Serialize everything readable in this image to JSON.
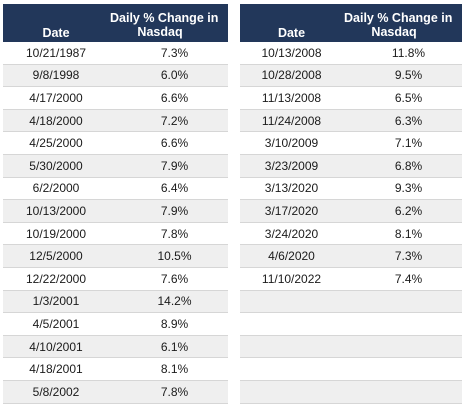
{
  "left_table": {
    "header": {
      "date": "Date",
      "change_line1": "Daily % Change in",
      "change_line2": "Nasdaq"
    },
    "rows": [
      {
        "date": "10/21/1987",
        "change": "7.3%"
      },
      {
        "date": "9/8/1998",
        "change": "6.0%"
      },
      {
        "date": "4/17/2000",
        "change": "6.6%"
      },
      {
        "date": "4/18/2000",
        "change": "7.2%"
      },
      {
        "date": "4/25/2000",
        "change": "6.6%"
      },
      {
        "date": "5/30/2000",
        "change": "7.9%"
      },
      {
        "date": "6/2/2000",
        "change": "6.4%"
      },
      {
        "date": "10/13/2000",
        "change": "7.9%"
      },
      {
        "date": "10/19/2000",
        "change": "7.8%"
      },
      {
        "date": "12/5/2000",
        "change": "10.5%"
      },
      {
        "date": "12/22/2000",
        "change": "7.6%"
      },
      {
        "date": "1/3/2001",
        "change": "14.2%"
      },
      {
        "date": "4/5/2001",
        "change": "8.9%"
      },
      {
        "date": "4/10/2001",
        "change": "6.1%"
      },
      {
        "date": "4/18/2001",
        "change": "8.1%"
      },
      {
        "date": "5/8/2002",
        "change": "7.8%"
      }
    ]
  },
  "right_table": {
    "header": {
      "date": "Date",
      "change_line1": "Daily % Change in",
      "change_line2": "Nasdaq"
    },
    "rows": [
      {
        "date": "10/13/2008",
        "change": "11.8%"
      },
      {
        "date": "10/28/2008",
        "change": "9.5%"
      },
      {
        "date": "11/13/2008",
        "change": "6.5%"
      },
      {
        "date": "11/24/2008",
        "change": "6.3%"
      },
      {
        "date": "3/10/2009",
        "change": "7.1%"
      },
      {
        "date": "3/23/2009",
        "change": "6.8%"
      },
      {
        "date": "3/13/2020",
        "change": "9.3%"
      },
      {
        "date": "3/17/2020",
        "change": "6.2%"
      },
      {
        "date": "3/24/2020",
        "change": "8.1%"
      },
      {
        "date": "4/6/2020",
        "change": "7.3%"
      },
      {
        "date": "11/10/2022",
        "change": "7.4%"
      },
      {
        "date": "",
        "change": ""
      },
      {
        "date": "",
        "change": ""
      },
      {
        "date": "",
        "change": ""
      },
      {
        "date": "",
        "change": ""
      },
      {
        "date": "",
        "change": ""
      }
    ]
  },
  "colors": {
    "header_bg": "#22375a",
    "header_text": "#ffffff",
    "stripe_bg": "#efefef",
    "grid_line": "#d6d6d6"
  }
}
